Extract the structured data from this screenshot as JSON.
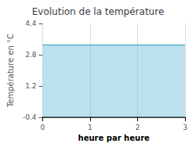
{
  "chart_data": {
    "type": "area",
    "title": "Evolution de la température",
    "xlabel": "heure par heure",
    "ylabel": "Température en °C",
    "x": [
      0,
      1,
      2,
      3
    ],
    "values": [
      3.3,
      3.3,
      3.3,
      3.3
    ],
    "color": "#5ab5d0",
    "xlim": [
      0,
      3
    ],
    "xticks": [
      0,
      1,
      2,
      3
    ],
    "ylim": [
      -0.4,
      4.4
    ],
    "yticks": [
      -0.4,
      1.2,
      2.8,
      4.4
    ],
    "grid": "x"
  }
}
